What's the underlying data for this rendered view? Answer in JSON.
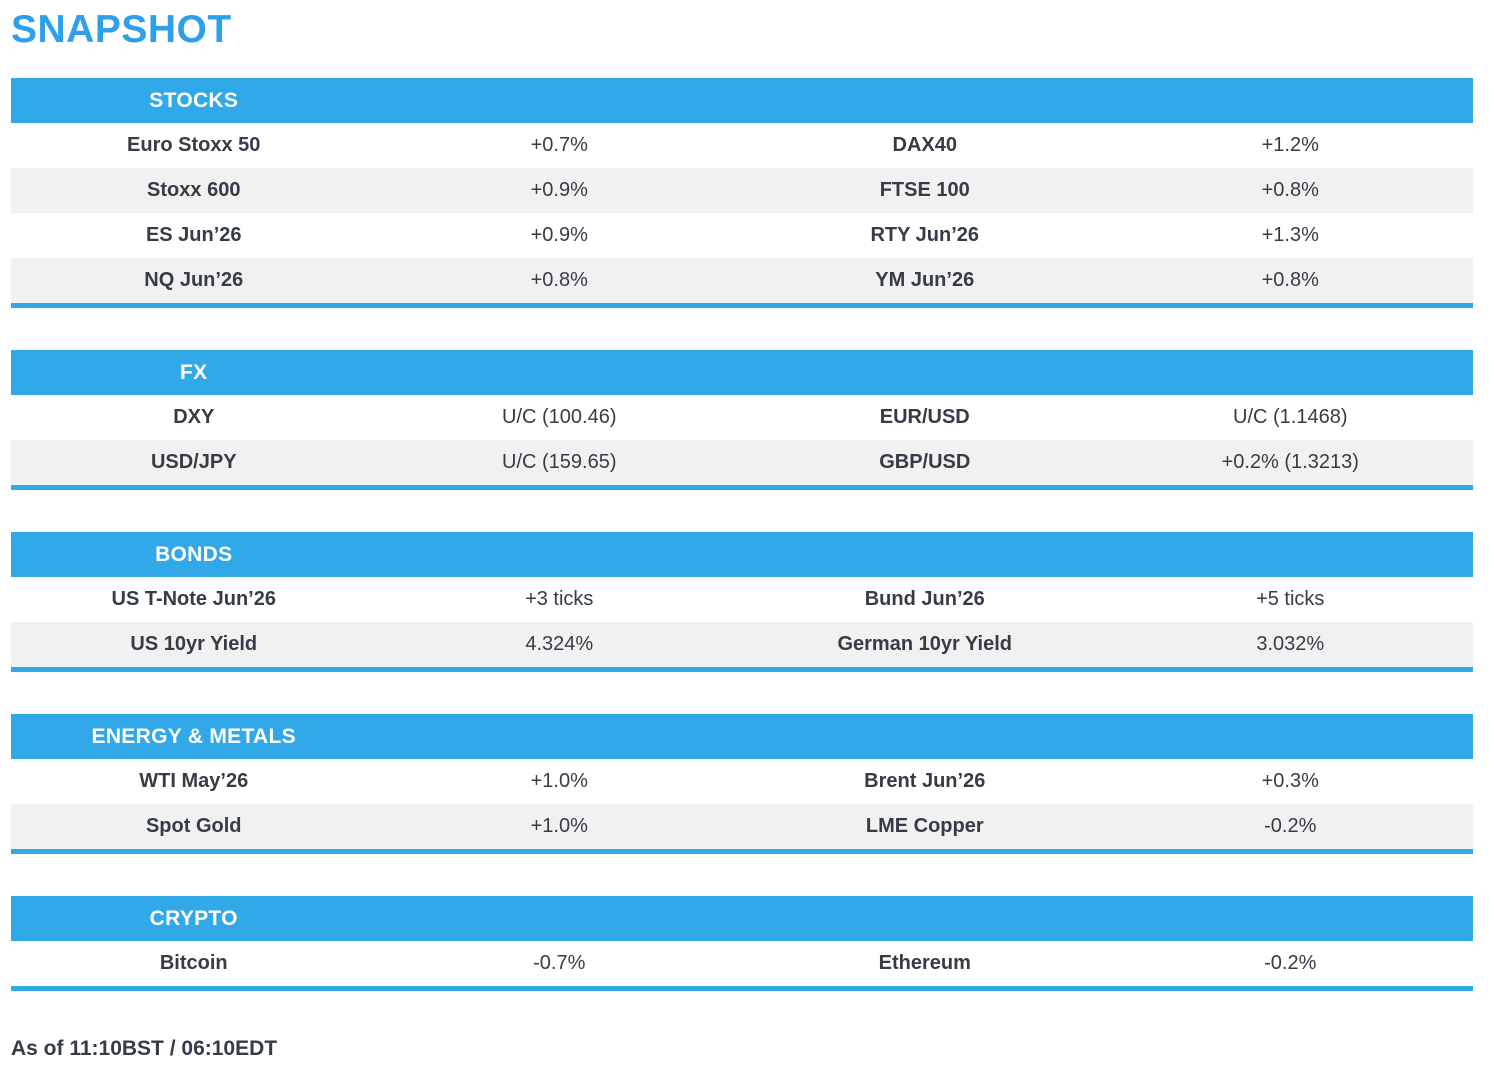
{
  "page_title": "SNAPSHOT",
  "colors": {
    "accent": "#31A9E8",
    "title-color": "#2E9FE9",
    "stripe": "#F1F1F2",
    "text": "#363C46"
  },
  "sections": [
    {
      "title": "STOCKS",
      "rows": [
        {
          "l1": "Euro Stoxx 50",
          "v1": "+0.7%",
          "l2": "DAX40",
          "v2": "+1.2%"
        },
        {
          "l1": "Stoxx 600",
          "v1": "+0.9%",
          "l2": "FTSE 100",
          "v2": "+0.8%"
        },
        {
          "l1": "ES Jun’26",
          "v1": "+0.9%",
          "l2": "RTY Jun’26",
          "v2": "+1.3%"
        },
        {
          "l1": "NQ Jun’26",
          "v1": "+0.8%",
          "l2": "YM Jun’26",
          "v2": "+0.8%"
        }
      ]
    },
    {
      "title": "FX",
      "rows": [
        {
          "l1": "DXY",
          "v1": "U/C (100.46)",
          "l2": "EUR/USD",
          "v2": "U/C (1.1468)"
        },
        {
          "l1": "USD/JPY",
          "v1": "U/C (159.65)",
          "l2": "GBP/USD",
          "v2": "+0.2% (1.3213)"
        }
      ]
    },
    {
      "title": "BONDS",
      "rows": [
        {
          "l1": "US T-Note Jun’26",
          "v1": "+3 ticks",
          "l2": "Bund Jun’26",
          "v2": "+5 ticks"
        },
        {
          "l1": "US 10yr Yield",
          "v1": "4.324%",
          "l2": "German 10yr Yield",
          "v2": "3.032%"
        }
      ]
    },
    {
      "title": "ENERGY & METALS",
      "rows": [
        {
          "l1": "WTI May’26",
          "v1": "+1.0%",
          "l2": "Brent Jun’26",
          "v2": "+0.3%"
        },
        {
          "l1": "Spot Gold",
          "v1": "+1.0%",
          "l2": "LME Copper",
          "v2": "-0.2%"
        }
      ]
    },
    {
      "title": "CRYPTO",
      "rows": [
        {
          "l1": "Bitcoin",
          "v1": "-0.7%",
          "l2": "Ethereum",
          "v2": "-0.2%"
        }
      ]
    }
  ],
  "footer": {
    "as_of": "As of 11:10BST / 06:10EDT"
  }
}
